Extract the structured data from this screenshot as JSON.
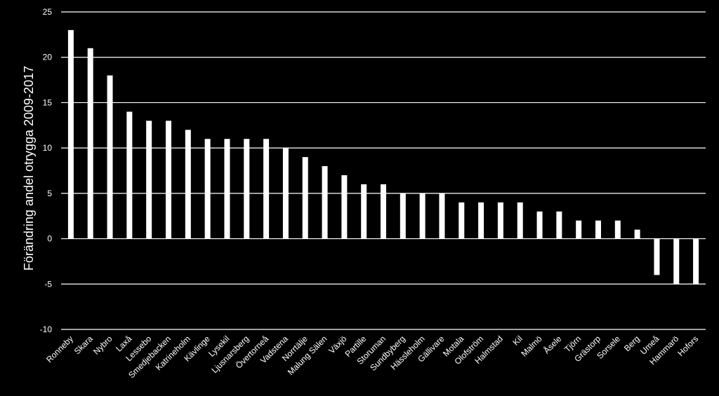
{
  "chart_data": {
    "type": "bar",
    "title": "",
    "xlabel": "",
    "ylabel": "Förändring andel otrygga 2009-2017",
    "ylim": [
      -10,
      25
    ],
    "yticks": [
      25,
      20,
      15,
      10,
      5,
      0,
      -5,
      -10
    ],
    "grid": true,
    "categories": [
      "Ronneby",
      "Skara",
      "Nybro",
      "Laxå",
      "Lessebo",
      "Smedjebacken",
      "Katrineholm",
      "Kävlinge",
      "Lysekil",
      "Ljusnarsberg",
      "Övertorneå",
      "Vadstena",
      "Norrtälje",
      "Malung Sälen",
      "Växjö",
      "Partille",
      "Storuman",
      "Sundbyberg",
      "Hässleholm",
      "Gällivare",
      "Motala",
      "Olofström",
      "Halmstad",
      "Kil",
      "Malmö",
      "Åsele",
      "Tjörn",
      "Grästorp",
      "Sorsele",
      "Berg",
      "Umeå",
      "Hammarö",
      "Hofors"
    ],
    "values": [
      23,
      21,
      18,
      14,
      13,
      13,
      12,
      11,
      11,
      11,
      11,
      10,
      9,
      8,
      7,
      6,
      6,
      5,
      5,
      5,
      4,
      4,
      4,
      4,
      3,
      3,
      2,
      2,
      2,
      1,
      -4,
      -5,
      -5
    ],
    "colors": {
      "background": "#000000",
      "bar": "#ffffff",
      "grid": "#ffffff",
      "text": "#ffffff"
    }
  }
}
